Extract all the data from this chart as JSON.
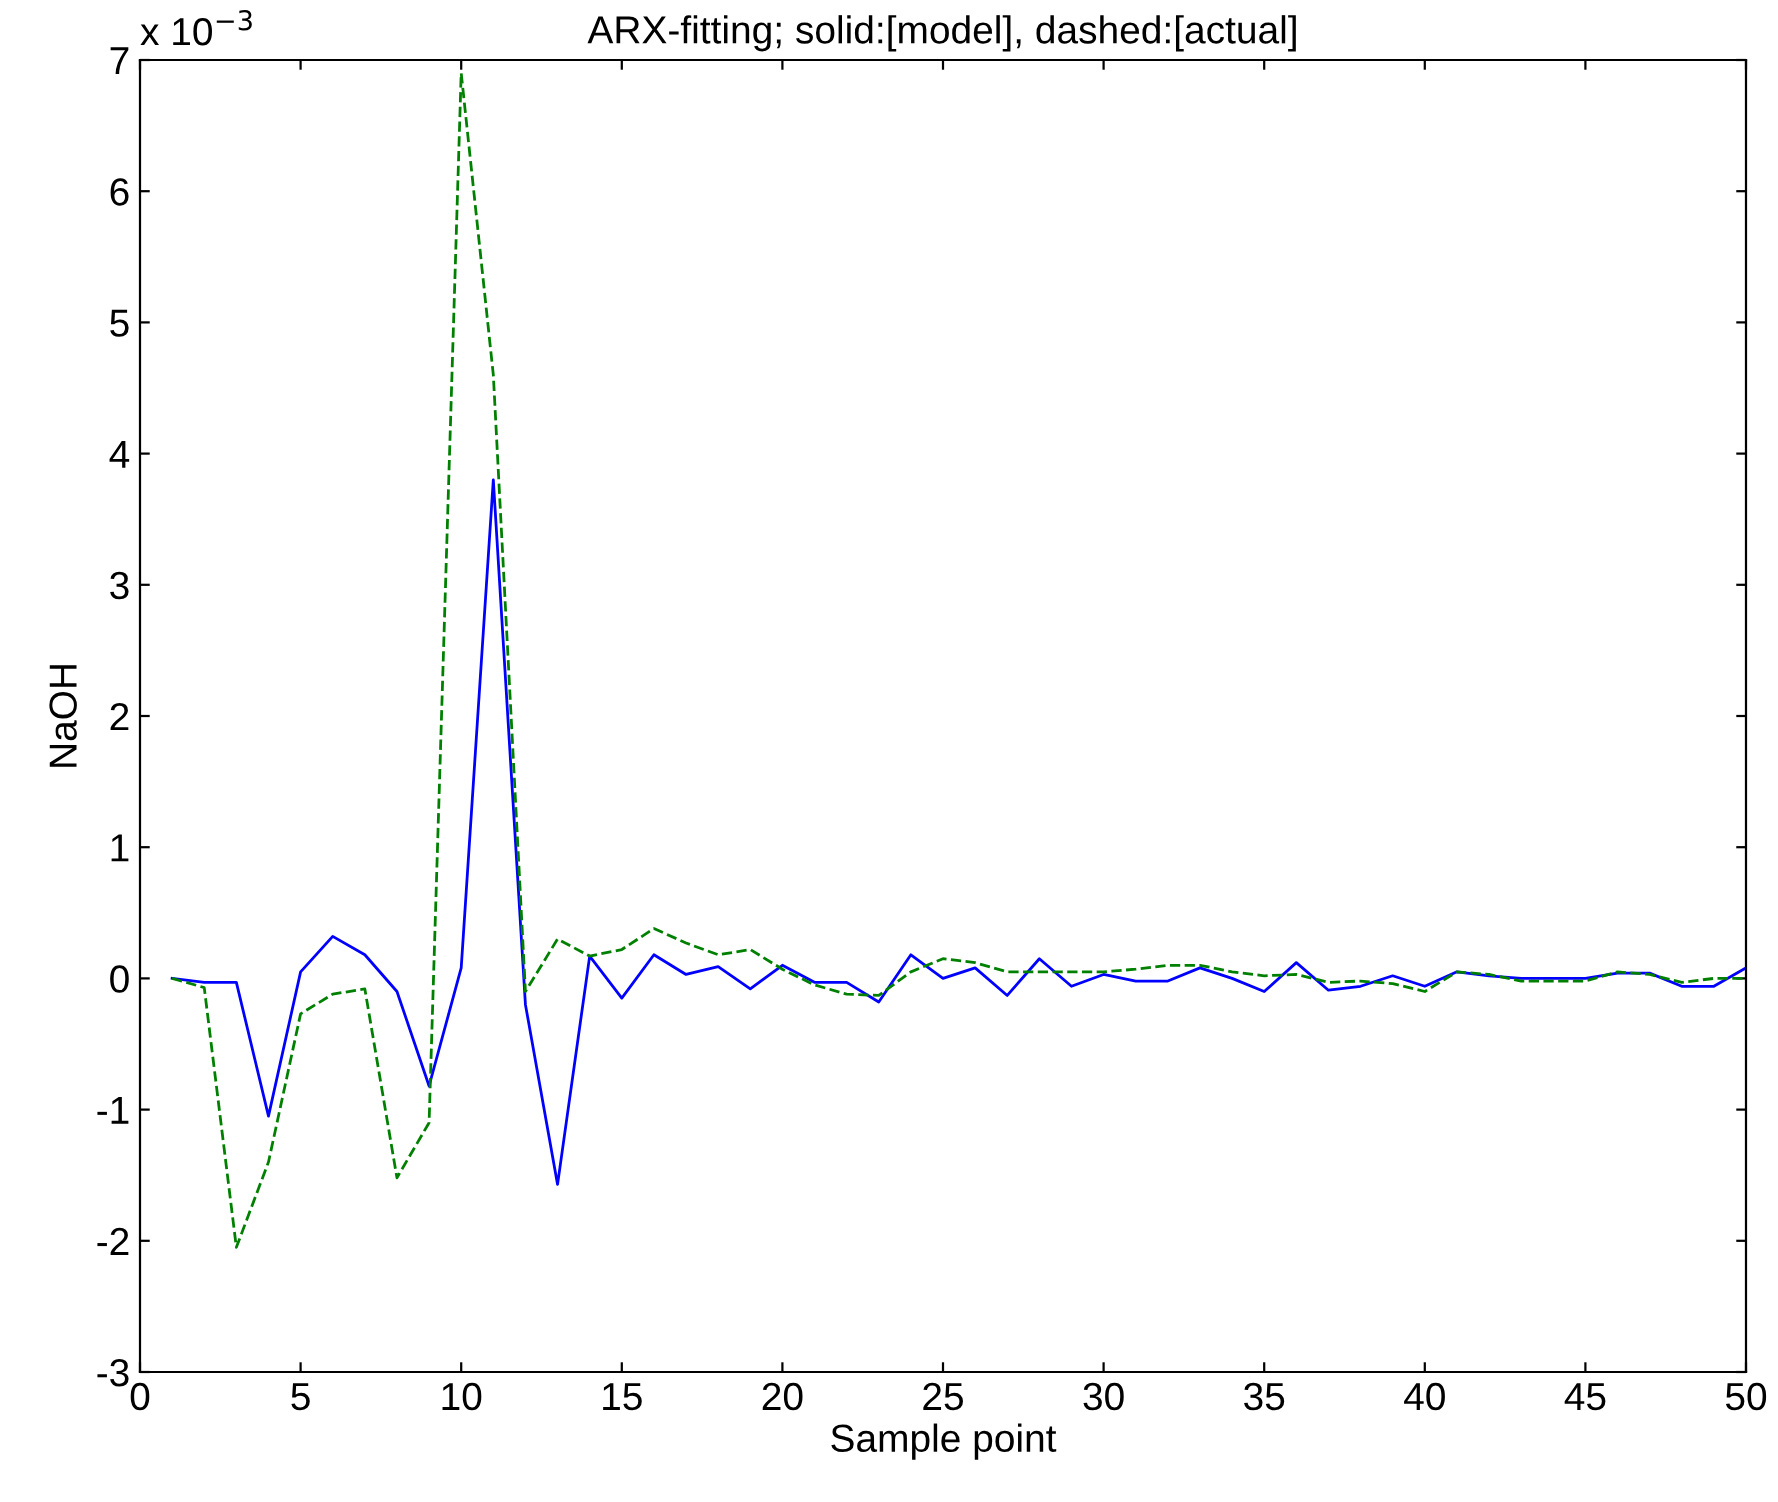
{
  "chart_data": {
    "type": "line",
    "title": "ARX-fitting; solid:[model], dashed:[actual]",
    "xlabel": "Sample point",
    "ylabel": "NaOH",
    "annotations": [
      "x 10$^{−3}$"
    ],
    "x": [
      1,
      2,
      3,
      4,
      5,
      6,
      7,
      8,
      9,
      10,
      11,
      12,
      13,
      14,
      15,
      16,
      17,
      18,
      19,
      20,
      21,
      22,
      23,
      24,
      25,
      26,
      27,
      28,
      29,
      30,
      31,
      32,
      33,
      34,
      35,
      36,
      37,
      38,
      39,
      40,
      41,
      42,
      43,
      44,
      45,
      46,
      47,
      48,
      49,
      50
    ],
    "series": [
      {
        "color": "#0000ff",
        "line_style": "solid",
        "values": [
          0,
          -0.03,
          -0.03,
          -1.05,
          0.05,
          0.32,
          0.18,
          -0.1,
          -0.82,
          0.08,
          3.8,
          -0.2,
          -1.57,
          0.17,
          -0.15,
          0.18,
          0.03,
          0.09,
          -0.08,
          0.1,
          -0.03,
          -0.03,
          -0.18,
          0.18,
          0,
          0.08,
          -0.13,
          0.15,
          -0.06,
          0.03,
          -0.02,
          -0.02,
          0.08,
          0,
          -0.1,
          0.12,
          -0.09,
          -0.06,
          0.02,
          -0.06,
          0.05,
          0.02,
          0,
          0,
          0,
          0.04,
          0.04,
          -0.06,
          -0.06,
          0.08
        ]
      },
      {
        "color": "#008000",
        "line_style": "dashed",
        "values": [
          0,
          -0.07,
          -2.05,
          -1.4,
          -0.27,
          -0.12,
          -0.08,
          -1.52,
          -1.1,
          6.9,
          4.6,
          -0.1,
          0.3,
          0.17,
          0.22,
          0.38,
          0.27,
          0.18,
          0.22,
          0.07,
          -0.05,
          -0.12,
          -0.13,
          0.05,
          0.15,
          0.12,
          0.05,
          0.05,
          0.05,
          0.05,
          0.07,
          0.1,
          0.1,
          0.05,
          0.02,
          0.03,
          -0.03,
          -0.02,
          -0.04,
          -0.1,
          0.05,
          0.03,
          -0.02,
          -0.02,
          -0.02,
          0.05,
          0.03,
          -0.03,
          0,
          0
        ]
      }
    ],
    "xlim": [
      0,
      50
    ],
    "xticks": [
      0,
      5,
      10,
      15,
      20,
      25,
      30,
      35,
      40,
      45,
      50
    ],
    "ylim": [
      -3,
      7
    ],
    "yticks": [
      -3,
      -2,
      -1,
      0,
      1,
      2,
      3,
      4,
      5,
      6,
      7
    ],
    "grid": false,
    "legend": false
  }
}
